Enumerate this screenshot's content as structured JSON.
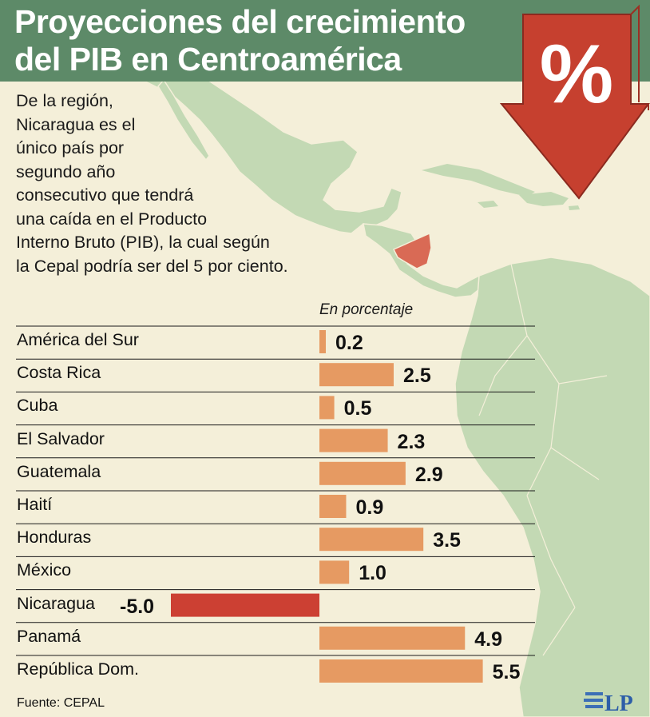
{
  "header": {
    "title_line1": "Proyecciones del crecimiento",
    "title_line2": "del PIB en Centroamérica",
    "percent_symbol": "%"
  },
  "intro": {
    "lines": [
      "De la región,",
      "Nicaragua es el",
      "único país por",
      "segundo año",
      "consecutivo que tendrá",
      "una caída en el Producto",
      "Interno Bruto (PIB), la cual según",
      "la Cepal podría ser del 5 por ciento."
    ]
  },
  "footer": {
    "source": "Fuente: CEPAL",
    "logo_text": "LP"
  },
  "colors": {
    "header_bg": "#5d8a68",
    "bar_positive": "#e69a62",
    "bar_negative": "#cc4033",
    "map_land": "#c3d9b4",
    "map_highlight": "#d96a55",
    "arrow": "#c6402f",
    "background": "#f4efd9"
  },
  "chart_data": {
    "type": "bar",
    "orientation": "horizontal",
    "unit_label": "En porcentaje",
    "categories": [
      "América del Sur",
      "Costa Rica",
      "Cuba",
      "El Salvador",
      "Guatemala",
      "Haití",
      "Honduras",
      "México",
      "Nicaragua",
      "Panamá",
      "República Dom."
    ],
    "values": [
      0.2,
      2.5,
      0.5,
      2.3,
      2.9,
      0.9,
      3.5,
      1.0,
      -5.0,
      4.9,
      5.5
    ],
    "value_labels": [
      "0.2",
      "2.5",
      "0.5",
      "2.3",
      "2.9",
      "0.9",
      "3.5",
      "1.0",
      "-5.0",
      "4.9",
      "5.5"
    ],
    "highlight": "Nicaragua",
    "xlim": [
      -5.0,
      5.5
    ],
    "grid": false
  }
}
